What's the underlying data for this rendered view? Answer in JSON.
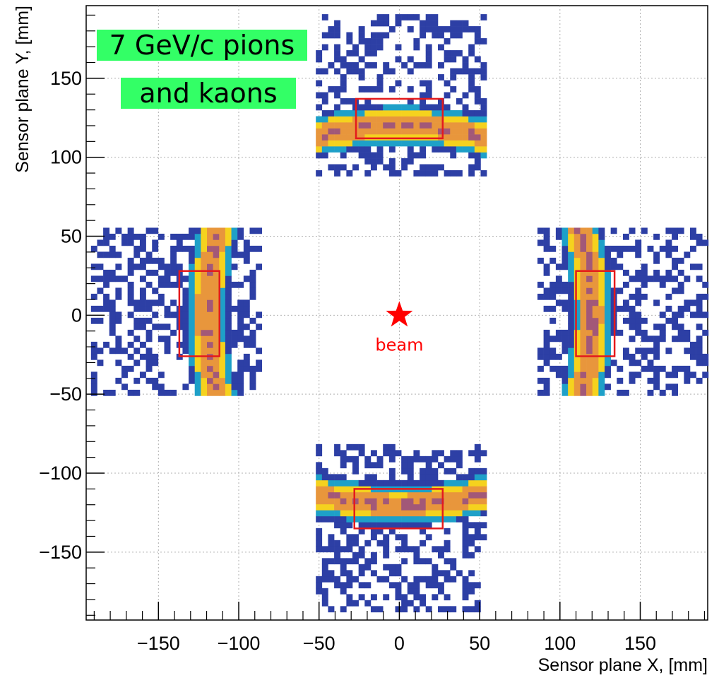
{
  "chart_data": {
    "type": "heatmap",
    "title": "",
    "xlabel": "Sensor plane X, [mm]",
    "ylabel": "Sensor plane Y, [mm]",
    "xlim": [
      -195,
      192
    ],
    "ylim": [
      -193,
      196
    ],
    "x_ticks": [
      -150,
      -100,
      -50,
      0,
      50,
      100,
      150
    ],
    "y_ticks": [
      -150,
      -100,
      -50,
      0,
      50,
      100,
      150
    ],
    "x_tick_labels": [
      "−150",
      "−100",
      "−50",
      "0",
      "50",
      "100",
      "150"
    ],
    "y_tick_labels": [
      "−150",
      "−100",
      "−50",
      "0",
      "50",
      "100",
      "150"
    ],
    "grid": true,
    "annotation_lines": [
      "7 GeV/c pions",
      "and kaons"
    ],
    "beam": {
      "label": "beam",
      "x": 0,
      "y": 0
    },
    "sensors": [
      {
        "name": "top",
        "xrange": [
          -52,
          52
        ],
        "yrange": [
          88,
          190
        ],
        "ring_center": 120,
        "orientation": "horizontal",
        "curve_sign": -1
      },
      {
        "name": "bottom",
        "xrange": [
          -52,
          52
        ],
        "yrange": [
          -188,
          -84
        ],
        "ring_center": -120,
        "orientation": "horizontal",
        "curve_sign": 1
      },
      {
        "name": "left",
        "xrange": [
          -192,
          -88
        ],
        "yrange": [
          -51,
          53
        ],
        "ring_center": -120,
        "orientation": "vertical",
        "curve_sign": 1
      },
      {
        "name": "right",
        "xrange": [
          86,
          190
        ],
        "yrange": [
          -51,
          53
        ],
        "ring_center": 120,
        "orientation": "vertical",
        "curve_sign": -1
      }
    ],
    "cut_boxes": [
      {
        "x": [
          -27,
          27
        ],
        "y": [
          112,
          137
        ]
      },
      {
        "x": [
          -28,
          27
        ],
        "y": [
          -135,
          -110
        ]
      },
      {
        "x": [
          -137,
          -112
        ],
        "y": [
          -26,
          28
        ]
      },
      {
        "x": [
          110,
          134
        ],
        "y": [
          -26,
          28
        ]
      }
    ],
    "colors": {
      "scatter": "#2d3fa5",
      "ring_outer": "#1ea0c8",
      "ring_mid": "#f5d21e",
      "ring_core": "#e8963c",
      "ring_peak": "#a25878",
      "cut_box": "#e41a1c",
      "annotation_bg": "#33ff66",
      "beam": "#ff0000"
    }
  }
}
